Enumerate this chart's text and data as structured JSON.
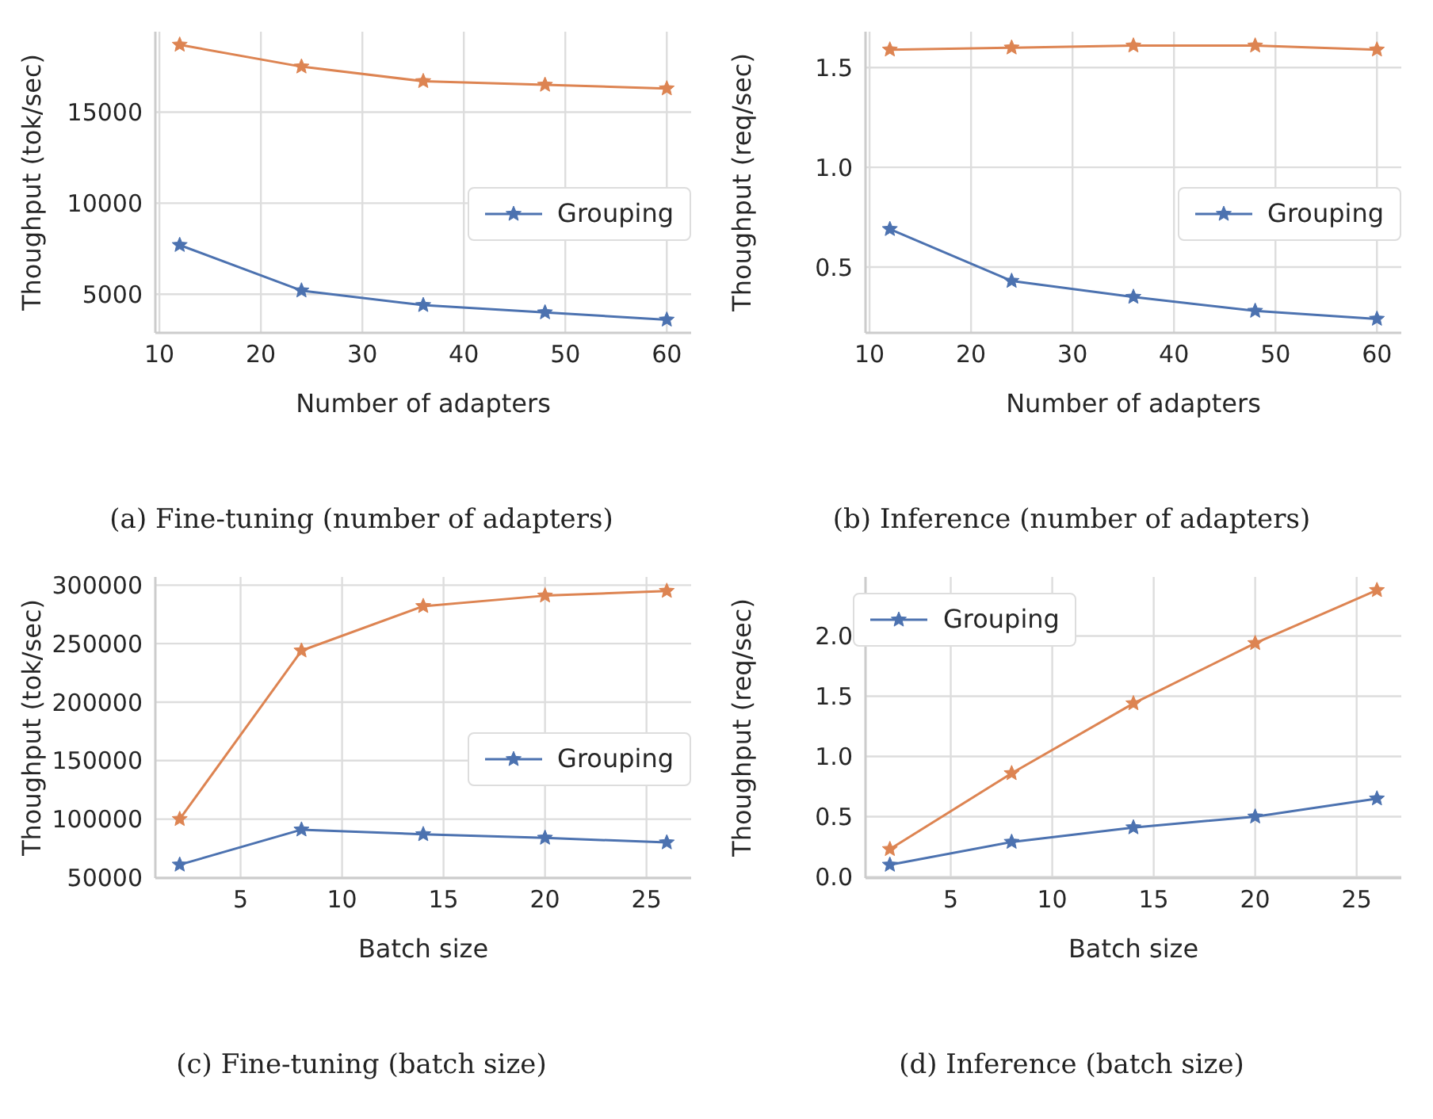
{
  "chart_data": [
    {
      "type": "line",
      "title": "(a) Fine-tuning (number of adapters)",
      "xlabel": "Number of adapters",
      "ylabel": "Thoughput (tok/sec)",
      "x": [
        12,
        24,
        36,
        48,
        60
      ],
      "series": [
        {
          "name": "Grouping",
          "color": "#4c72b0",
          "values": [
            7700,
            5200,
            4400,
            4000,
            3600
          ]
        },
        {
          "color": "#dd8452",
          "values": [
            18700,
            17500,
            16700,
            16500,
            16300
          ]
        }
      ],
      "xlim": [
        9.6,
        62.4
      ],
      "xticks": [
        10,
        20,
        30,
        40,
        50,
        60
      ],
      "ylim": [
        2880,
        19420
      ],
      "yticks": [
        5000,
        10000,
        15000
      ],
      "grid": true,
      "legend": "right",
      "marker": "star",
      "line_style": "solid"
    },
    {
      "type": "line",
      "title": "(b) Inference (number of adapters)",
      "xlabel": "Number of adapters",
      "ylabel": "Thoughput (req/sec)",
      "x": [
        12,
        24,
        36,
        48,
        60
      ],
      "series": [
        {
          "name": "Grouping",
          "color": "#4c72b0",
          "values": [
            0.69,
            0.43,
            0.35,
            0.28,
            0.24
          ]
        },
        {
          "color": "#dd8452",
          "values": [
            1.59,
            1.6,
            1.61,
            1.61,
            1.59
          ]
        }
      ],
      "xlim": [
        9.6,
        62.4
      ],
      "xticks": [
        10,
        20,
        30,
        40,
        50,
        60
      ],
      "ylim": [
        0.17,
        1.68
      ],
      "yticks": [
        {
          "value": 0.5,
          "label": "0.5"
        },
        {
          "value": 1,
          "label": "1.0"
        },
        {
          "value": 1.5,
          "label": "1.5"
        }
      ],
      "grid": true,
      "legend": "right",
      "marker": "star",
      "line_style": "solid"
    },
    {
      "type": "line",
      "title": "(c) Fine-tuning (batch size)",
      "xlabel": "Batch size",
      "ylabel": "Thoughput (tok/sec)",
      "x": [
        2,
        8,
        14,
        20,
        26
      ],
      "series": [
        {
          "name": "Grouping",
          "color": "#4c72b0",
          "values": [
            61000,
            91000,
            87000,
            84000,
            80000
          ]
        },
        {
          "color": "#dd8452",
          "values": [
            100000,
            244000,
            282000,
            291000,
            295000
          ]
        }
      ],
      "xlim": [
        0.8,
        27.2
      ],
      "xticks": [
        5,
        10,
        15,
        20,
        25
      ],
      "ylim": [
        49600,
        307000
      ],
      "yticks": [
        50000,
        100000,
        150000,
        200000,
        250000,
        300000
      ],
      "grid": true,
      "legend": "right",
      "marker": "star",
      "line_style": "solid"
    },
    {
      "type": "line",
      "title": "(d) Inference (batch size)",
      "xlabel": "Batch size",
      "ylabel": "Thoughput (req/sec)",
      "x": [
        2,
        8,
        14,
        20,
        26
      ],
      "series": [
        {
          "name": "Grouping",
          "color": "#4c72b0",
          "values": [
            0.1,
            0.29,
            0.41,
            0.5,
            0.65
          ]
        },
        {
          "color": "#dd8452",
          "values": [
            0.23,
            0.86,
            1.44,
            1.94,
            2.38
          ]
        }
      ],
      "xlim": [
        0.8,
        27.2
      ],
      "xticks": [
        5,
        10,
        15,
        20,
        25
      ],
      "ylim": [
        -0.01,
        2.49
      ],
      "yticks": [
        {
          "value": 0,
          "label": "0.0"
        },
        {
          "value": 0.5,
          "label": "0.5"
        },
        {
          "value": 1,
          "label": "1.0"
        },
        {
          "value": 1.5,
          "label": "1.5"
        },
        {
          "value": 2,
          "label": "2.0"
        }
      ],
      "grid": true,
      "legend": "top left",
      "marker": "star",
      "line_style": "solid"
    }
  ]
}
